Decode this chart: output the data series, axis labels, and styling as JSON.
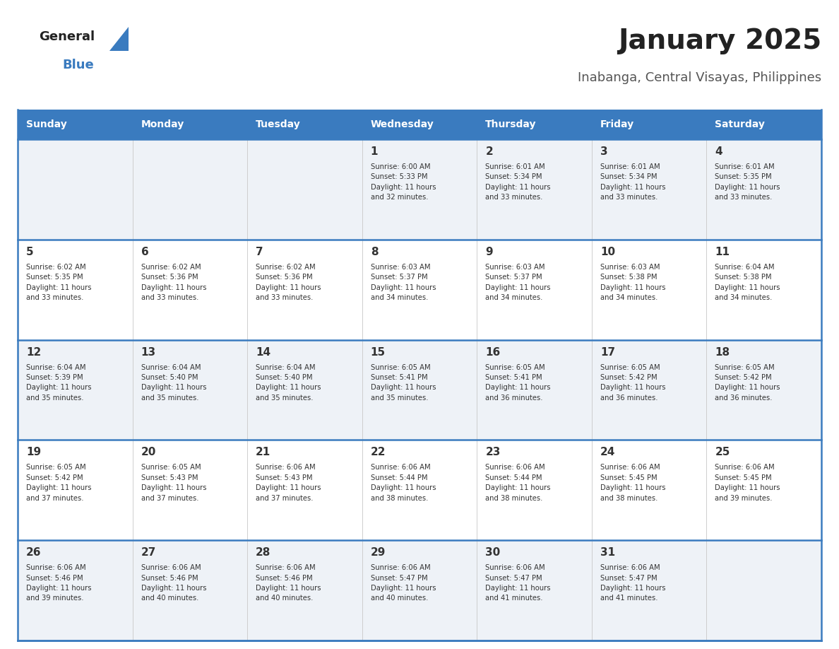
{
  "title": "January 2025",
  "subtitle": "Inabanga, Central Visayas, Philippines",
  "days_of_week": [
    "Sunday",
    "Monday",
    "Tuesday",
    "Wednesday",
    "Thursday",
    "Friday",
    "Saturday"
  ],
  "header_bg": "#3a7bbf",
  "header_text": "#ffffff",
  "row_bg_odd": "#eef2f7",
  "row_bg_even": "#ffffff",
  "cell_text": "#333333",
  "border_color": "#3a7bbf",
  "title_color": "#222222",
  "subtitle_color": "#555555",
  "logo_text_color": "#222222",
  "logo_blue_color": "#3a7bbf",
  "calendar": [
    [
      {
        "day": "",
        "info": ""
      },
      {
        "day": "",
        "info": ""
      },
      {
        "day": "",
        "info": ""
      },
      {
        "day": "1",
        "info": "Sunrise: 6:00 AM\nSunset: 5:33 PM\nDaylight: 11 hours\nand 32 minutes."
      },
      {
        "day": "2",
        "info": "Sunrise: 6:01 AM\nSunset: 5:34 PM\nDaylight: 11 hours\nand 33 minutes."
      },
      {
        "day": "3",
        "info": "Sunrise: 6:01 AM\nSunset: 5:34 PM\nDaylight: 11 hours\nand 33 minutes."
      },
      {
        "day": "4",
        "info": "Sunrise: 6:01 AM\nSunset: 5:35 PM\nDaylight: 11 hours\nand 33 minutes."
      }
    ],
    [
      {
        "day": "5",
        "info": "Sunrise: 6:02 AM\nSunset: 5:35 PM\nDaylight: 11 hours\nand 33 minutes."
      },
      {
        "day": "6",
        "info": "Sunrise: 6:02 AM\nSunset: 5:36 PM\nDaylight: 11 hours\nand 33 minutes."
      },
      {
        "day": "7",
        "info": "Sunrise: 6:02 AM\nSunset: 5:36 PM\nDaylight: 11 hours\nand 33 minutes."
      },
      {
        "day": "8",
        "info": "Sunrise: 6:03 AM\nSunset: 5:37 PM\nDaylight: 11 hours\nand 34 minutes."
      },
      {
        "day": "9",
        "info": "Sunrise: 6:03 AM\nSunset: 5:37 PM\nDaylight: 11 hours\nand 34 minutes."
      },
      {
        "day": "10",
        "info": "Sunrise: 6:03 AM\nSunset: 5:38 PM\nDaylight: 11 hours\nand 34 minutes."
      },
      {
        "day": "11",
        "info": "Sunrise: 6:04 AM\nSunset: 5:38 PM\nDaylight: 11 hours\nand 34 minutes."
      }
    ],
    [
      {
        "day": "12",
        "info": "Sunrise: 6:04 AM\nSunset: 5:39 PM\nDaylight: 11 hours\nand 35 minutes."
      },
      {
        "day": "13",
        "info": "Sunrise: 6:04 AM\nSunset: 5:40 PM\nDaylight: 11 hours\nand 35 minutes."
      },
      {
        "day": "14",
        "info": "Sunrise: 6:04 AM\nSunset: 5:40 PM\nDaylight: 11 hours\nand 35 minutes."
      },
      {
        "day": "15",
        "info": "Sunrise: 6:05 AM\nSunset: 5:41 PM\nDaylight: 11 hours\nand 35 minutes."
      },
      {
        "day": "16",
        "info": "Sunrise: 6:05 AM\nSunset: 5:41 PM\nDaylight: 11 hours\nand 36 minutes."
      },
      {
        "day": "17",
        "info": "Sunrise: 6:05 AM\nSunset: 5:42 PM\nDaylight: 11 hours\nand 36 minutes."
      },
      {
        "day": "18",
        "info": "Sunrise: 6:05 AM\nSunset: 5:42 PM\nDaylight: 11 hours\nand 36 minutes."
      }
    ],
    [
      {
        "day": "19",
        "info": "Sunrise: 6:05 AM\nSunset: 5:42 PM\nDaylight: 11 hours\nand 37 minutes."
      },
      {
        "day": "20",
        "info": "Sunrise: 6:05 AM\nSunset: 5:43 PM\nDaylight: 11 hours\nand 37 minutes."
      },
      {
        "day": "21",
        "info": "Sunrise: 6:06 AM\nSunset: 5:43 PM\nDaylight: 11 hours\nand 37 minutes."
      },
      {
        "day": "22",
        "info": "Sunrise: 6:06 AM\nSunset: 5:44 PM\nDaylight: 11 hours\nand 38 minutes."
      },
      {
        "day": "23",
        "info": "Sunrise: 6:06 AM\nSunset: 5:44 PM\nDaylight: 11 hours\nand 38 minutes."
      },
      {
        "day": "24",
        "info": "Sunrise: 6:06 AM\nSunset: 5:45 PM\nDaylight: 11 hours\nand 38 minutes."
      },
      {
        "day": "25",
        "info": "Sunrise: 6:06 AM\nSunset: 5:45 PM\nDaylight: 11 hours\nand 39 minutes."
      }
    ],
    [
      {
        "day": "26",
        "info": "Sunrise: 6:06 AM\nSunset: 5:46 PM\nDaylight: 11 hours\nand 39 minutes."
      },
      {
        "day": "27",
        "info": "Sunrise: 6:06 AM\nSunset: 5:46 PM\nDaylight: 11 hours\nand 40 minutes."
      },
      {
        "day": "28",
        "info": "Sunrise: 6:06 AM\nSunset: 5:46 PM\nDaylight: 11 hours\nand 40 minutes."
      },
      {
        "day": "29",
        "info": "Sunrise: 6:06 AM\nSunset: 5:47 PM\nDaylight: 11 hours\nand 40 minutes."
      },
      {
        "day": "30",
        "info": "Sunrise: 6:06 AM\nSunset: 5:47 PM\nDaylight: 11 hours\nand 41 minutes."
      },
      {
        "day": "31",
        "info": "Sunrise: 6:06 AM\nSunset: 5:47 PM\nDaylight: 11 hours\nand 41 minutes."
      },
      {
        "day": "",
        "info": ""
      }
    ]
  ]
}
